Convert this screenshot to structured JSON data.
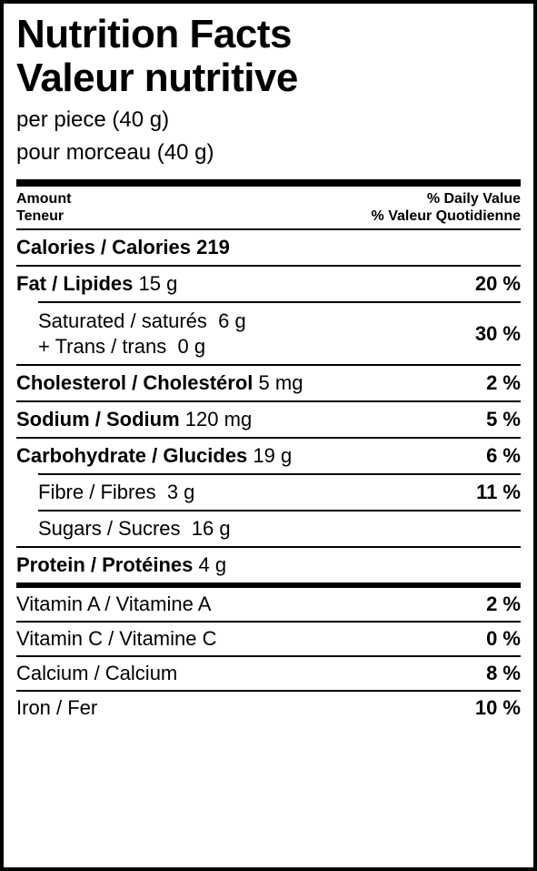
{
  "title": {
    "line1": "Nutrition Facts",
    "line2": "Valeur nutritive"
  },
  "serving": {
    "line1": "per piece (40 g)",
    "line2": "pour morceau (40 g)"
  },
  "hdr": {
    "amount_en": "Amount",
    "amount_fr": "Teneur",
    "dv_en": "% Daily Value",
    "dv_fr": "% Valeur Quotidienne"
  },
  "calories": {
    "label": "Calories / Calories",
    "value": "219"
  },
  "fat": {
    "label": "Fat / Lipides",
    "value": "15 g",
    "pct": "20 %"
  },
  "sat": {
    "label": "Saturated / saturés",
    "value": "6 g"
  },
  "trans": {
    "label": "+ Trans / trans",
    "value": "0 g"
  },
  "sat_trans_pct": "30 %",
  "cholesterol": {
    "label": "Cholesterol / Cholestérol",
    "value": "5 mg",
    "pct": "2 %"
  },
  "sodium": {
    "label": "Sodium / Sodium",
    "value": "120 mg",
    "pct": "5 %"
  },
  "carb": {
    "label": "Carbohydrate / Glucides",
    "value": "19 g",
    "pct": "6 %"
  },
  "fibre": {
    "label": "Fibre / Fibres",
    "value": "3 g",
    "pct": "11 %"
  },
  "sugars": {
    "label": "Sugars / Sucres",
    "value": "16 g"
  },
  "protein": {
    "label": "Protein / Protéines",
    "value": "4 g"
  },
  "vitaminA": {
    "label": "Vitamin A / Vitamine A",
    "pct": "2 %"
  },
  "vitaminC": {
    "label": "Vitamin C / Vitamine C",
    "pct": "0 %"
  },
  "calcium": {
    "label": "Calcium / Calcium",
    "pct": "8 %"
  },
  "iron": {
    "label": "Iron / Fer",
    "pct": "10 %"
  }
}
